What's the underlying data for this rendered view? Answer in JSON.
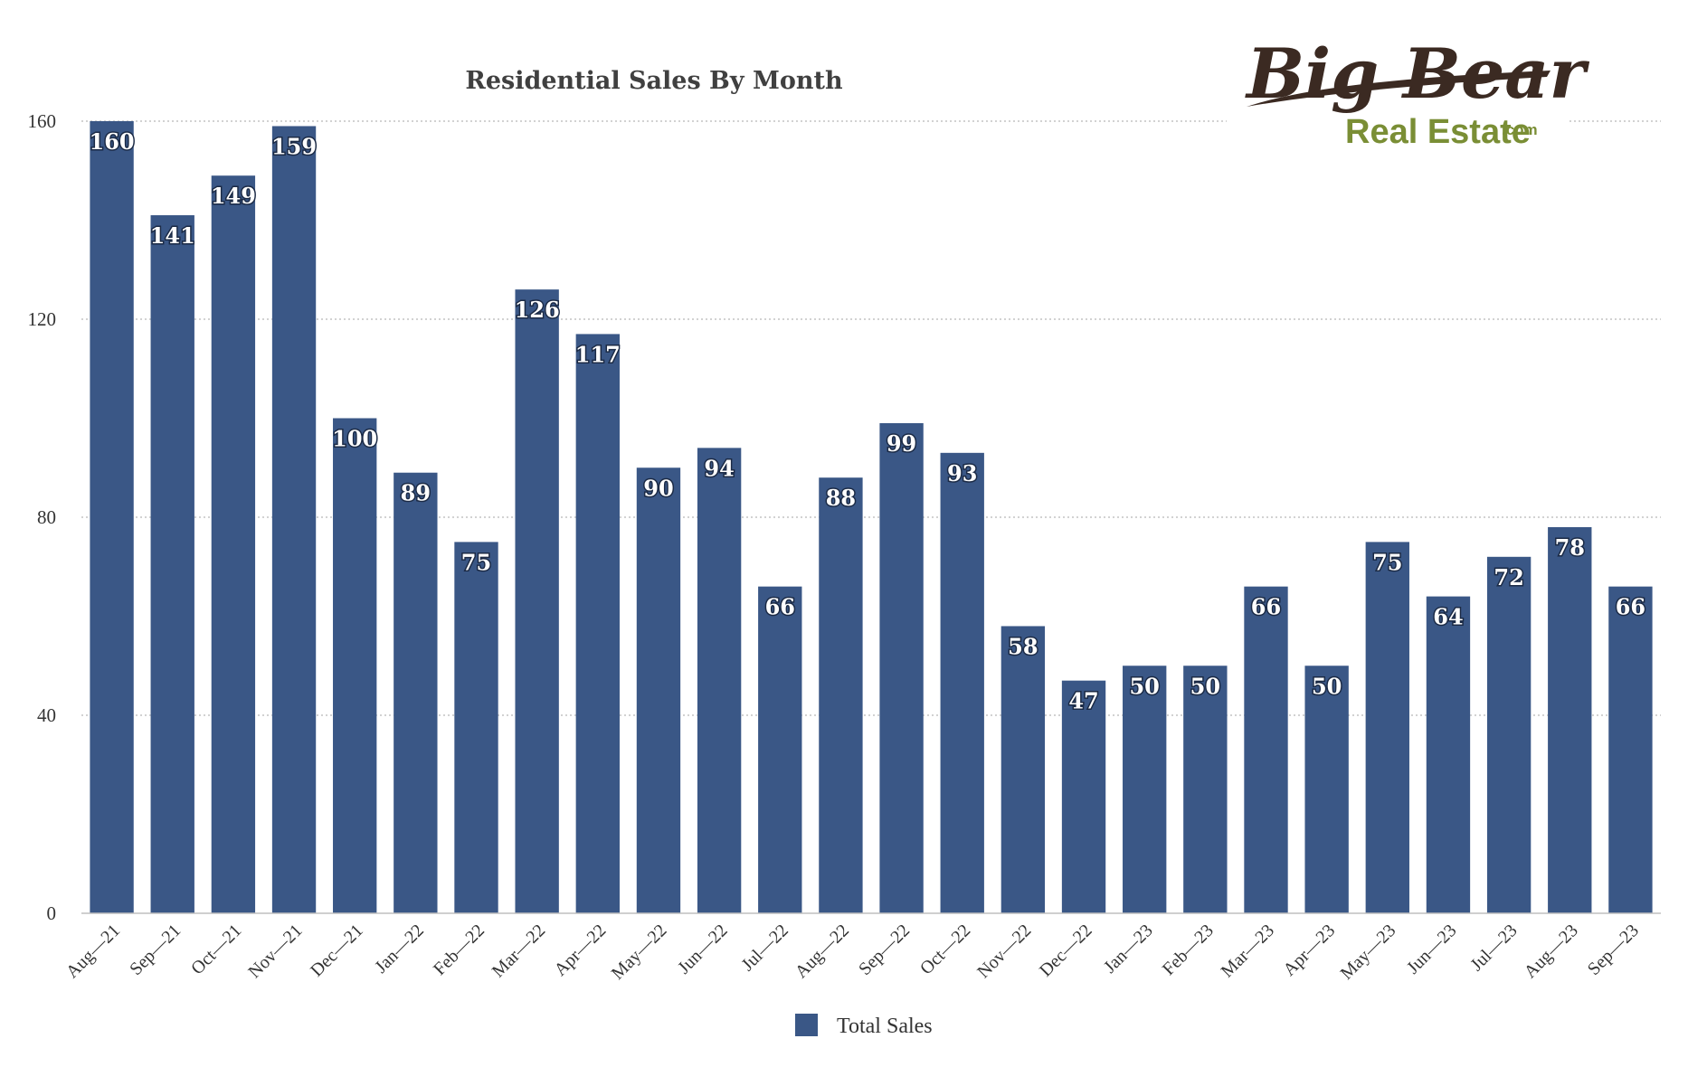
{
  "chart_data": {
    "type": "bar",
    "title": "Residential Sales By Month",
    "categories": [
      "Aug—21",
      "Sep—21",
      "Oct—21",
      "Nov—21",
      "Dec—21",
      "Jan—22",
      "Feb—22",
      "Mar—22",
      "Apr—22",
      "May—22",
      "Jun—22",
      "Jul—22",
      "Aug—22",
      "Sep—22",
      "Oct—22",
      "Nov—22",
      "Dec—22",
      "Jan—23",
      "Feb—23",
      "Mar—23",
      "Apr—23",
      "May—23",
      "Jun—23",
      "Jul—23",
      "Aug—23",
      "Sep—23"
    ],
    "series": [
      {
        "name": "Total Sales",
        "values": [
          160,
          141,
          149,
          159,
          100,
          89,
          75,
          126,
          117,
          90,
          94,
          66,
          88,
          99,
          93,
          58,
          47,
          50,
          50,
          66,
          50,
          75,
          64,
          72,
          78,
          66
        ],
        "color": "#3a5786"
      }
    ],
    "xlabel": "",
    "ylabel": "",
    "ylim": [
      0,
      160
    ],
    "yticks": [
      0,
      40,
      80,
      120,
      160
    ],
    "grid": true,
    "data_labels": true,
    "legend": "bottom-center"
  },
  "logo": {
    "line1": "Big Bear",
    "line2": "Real Estate",
    "suffix": ".com",
    "colors": {
      "brown": "#3b2a22",
      "green": "#7a8e35"
    }
  }
}
